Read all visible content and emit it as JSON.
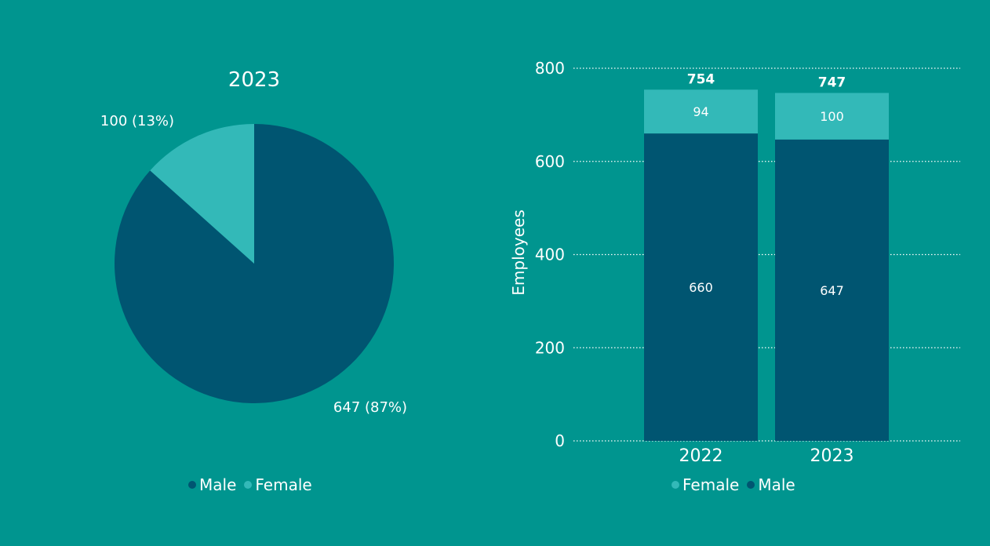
{
  "colors": {
    "background": "#00958f",
    "male": "#005571",
    "female": "#33b9b8",
    "text": "#ffffff"
  },
  "chart_data": [
    {
      "type": "pie",
      "title": "2023",
      "slices": [
        {
          "name": "Male",
          "value": 647,
          "label": "647 (87%)",
          "color": "#005571"
        },
        {
          "name": "Female",
          "value": 100,
          "label": "100 (13%)",
          "color": "#33b9b8"
        }
      ],
      "legend": {
        "placement": "bottom",
        "items": [
          {
            "name": "Male",
            "color": "#005571"
          },
          {
            "name": "Female",
            "color": "#33b9b8"
          }
        ]
      }
    },
    {
      "type": "bar",
      "stacked": true,
      "categories": [
        "2022",
        "2023"
      ],
      "series": [
        {
          "name": "Male",
          "values": [
            660,
            647
          ],
          "color": "#005571"
        },
        {
          "name": "Female",
          "values": [
            94,
            100
          ],
          "color": "#33b9b8"
        }
      ],
      "totals": [
        754,
        747
      ],
      "title": "",
      "xlabel": "",
      "ylabel": "Employees",
      "ylim": [
        0,
        800
      ],
      "yticks": [
        0,
        200,
        400,
        600,
        800
      ],
      "grid": true,
      "legend": {
        "placement": "bottom",
        "items": [
          {
            "name": "Female",
            "color": "#33b9b8"
          },
          {
            "name": "Male",
            "color": "#005571"
          }
        ]
      }
    }
  ]
}
